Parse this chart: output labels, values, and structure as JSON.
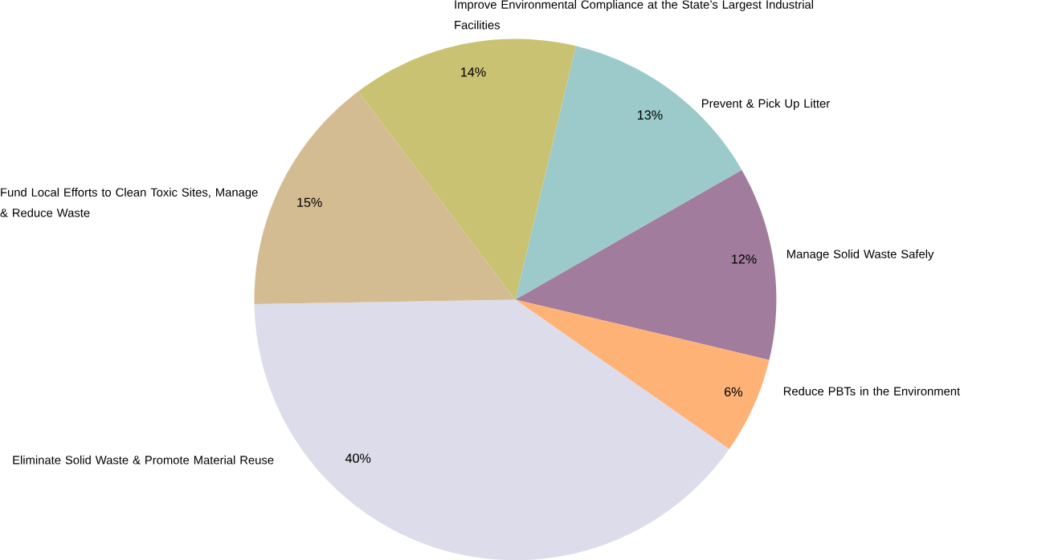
{
  "chart_data": {
    "type": "pie",
    "categories": [
      "Prevent & Pick Up Litter",
      "Manage Solid Waste Safely",
      "Reduce PBTs in the Environment",
      "Eliminate Solid Waste & Promote Material Reuse",
      "Fund Local Efforts to Clean Toxic Sites, Manage & Reduce Waste",
      "Improve Environmental Compliance at the State’s Largest Industrial Facilities"
    ],
    "values": [
      13,
      12,
      6,
      40,
      15,
      14
    ],
    "value_labels": [
      "13%",
      "12%",
      "6%",
      "40%",
      "15%",
      "14%"
    ],
    "colors": [
      "#9ccaca",
      "#a27c9c",
      "#ffb276",
      "#dcdcea",
      "#d4bc92",
      "#c8c272"
    ]
  }
}
